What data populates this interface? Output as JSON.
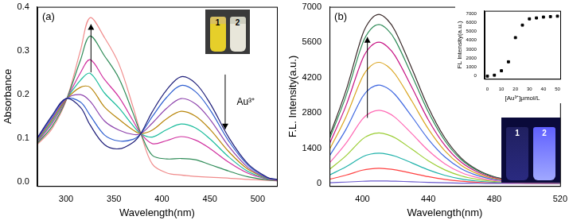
{
  "chart_data": [
    {
      "type": "line",
      "x_label": "Wavelength(nm)",
      "y_label": "Absorbance",
      "annotations": [
        "(a)",
        "Au³⁺",
        "1",
        "2"
      ],
      "grid": false,
      "xlim": [
        270,
        520
      ],
      "xticks": [
        300,
        350,
        400,
        450,
        500
      ],
      "ylim": [
        -0.01,
        0.4
      ],
      "yticks": [
        {
          "value": 0,
          "label": "0.0"
        },
        0.1,
        0.2,
        0.3,
        0.4
      ],
      "x": [
        270,
        285,
        300,
        315,
        325,
        340,
        355,
        370,
        378,
        390,
        405,
        420,
        435,
        450,
        470,
        490,
        510,
        520
      ],
      "series": [
        {
          "color": "#1f1f7a",
          "values": [
            0.1,
            0.15,
            0.19,
            0.17,
            0.13,
            0.085,
            0.075,
            0.09,
            0.11,
            0.16,
            0.21,
            0.24,
            0.225,
            0.18,
            0.1,
            0.04,
            0.01,
            0.005
          ]
        },
        {
          "color": "#2f5fd0",
          "values": [
            0.099,
            0.147,
            0.19,
            0.182,
            0.152,
            0.107,
            0.093,
            0.097,
            0.11,
            0.149,
            0.193,
            0.22,
            0.206,
            0.165,
            0.092,
            0.037,
            0.009,
            0.005
          ]
        },
        {
          "color": "#8e44ad",
          "values": [
            0.097,
            0.143,
            0.189,
            0.199,
            0.184,
            0.139,
            0.118,
            0.108,
            0.11,
            0.134,
            0.168,
            0.19,
            0.178,
            0.143,
            0.08,
            0.032,
            0.008,
            0.004
          ]
        },
        {
          "color": "#b8860b",
          "values": [
            0.095,
            0.14,
            0.188,
            0.216,
            0.216,
            0.171,
            0.143,
            0.118,
            0.11,
            0.118,
            0.144,
            0.161,
            0.15,
            0.12,
            0.068,
            0.028,
            0.008,
            0.004
          ]
        },
        {
          "color": "#1abc9c",
          "values": [
            0.093,
            0.136,
            0.188,
            0.232,
            0.248,
            0.203,
            0.169,
            0.128,
            0.11,
            0.102,
            0.119,
            0.132,
            0.123,
            0.098,
            0.056,
            0.023,
            0.007,
            0.004
          ]
        },
        {
          "color": "#d0309f",
          "values": [
            0.091,
            0.132,
            0.187,
            0.249,
            0.279,
            0.234,
            0.194,
            0.139,
            0.11,
            0.087,
            0.094,
            0.103,
            0.095,
            0.076,
            0.044,
            0.019,
            0.006,
            0.003
          ]
        },
        {
          "color": "#2e8b57",
          "values": [
            0.088,
            0.125,
            0.186,
            0.278,
            0.333,
            0.288,
            0.237,
            0.156,
            0.11,
            0.06,
            0.052,
            0.053,
            0.05,
            0.039,
            0.024,
            0.011,
            0.004,
            0.002
          ]
        },
        {
          "color": "#f08c8c",
          "values": [
            0.085,
            0.12,
            0.185,
            0.3,
            0.375,
            0.33,
            0.27,
            0.17,
            0.11,
            0.04,
            0.02,
            0.015,
            0.012,
            0.01,
            0.008,
            0.005,
            0.003,
            0.002
          ]
        }
      ]
    },
    {
      "type": "line",
      "x_label": "Wavelength(nm)",
      "y_label": "F.L. Intensity(a.u.)",
      "annotations": [
        "(b)",
        "1",
        "2"
      ],
      "grid": false,
      "xlim": [
        380,
        520
      ],
      "xticks": [
        400,
        440,
        480,
        520
      ],
      "ylim": [
        -100,
        7000
      ],
      "yticks": [
        0,
        1400,
        2800,
        4200,
        5600,
        7000
      ],
      "x": [
        380,
        390,
        400,
        405,
        410,
        415,
        420,
        430,
        440,
        450,
        460,
        470,
        480,
        490,
        500,
        510,
        520
      ],
      "series": [
        {
          "color": "#6a5acd",
          "values": [
            28,
            55,
            88,
            97,
            100,
            97,
            90,
            68,
            45,
            27,
            15,
            8,
            4,
            2,
            1,
            1,
            0
          ]
        },
        {
          "color": "#ff4040",
          "values": [
            168,
            330,
            528,
            582,
            600,
            582,
            540,
            408,
            270,
            162,
            90,
            48,
            24,
            12,
            6,
            3,
            1
          ]
        },
        {
          "color": "#20b2aa",
          "values": [
            336,
            660,
            1056,
            1164,
            1200,
            1164,
            1080,
            816,
            540,
            324,
            180,
            96,
            48,
            24,
            12,
            6,
            2
          ]
        },
        {
          "color": "#9acd32",
          "values": [
            560,
            1100,
            1760,
            1940,
            2000,
            1940,
            1800,
            1360,
            900,
            540,
            300,
            160,
            80,
            40,
            20,
            10,
            4
          ]
        },
        {
          "color": "#ff69b4",
          "values": [
            812,
            1595,
            2552,
            2813,
            2900,
            2813,
            2610,
            1972,
            1305,
            783,
            435,
            232,
            116,
            58,
            29,
            15,
            6
          ]
        },
        {
          "color": "#4169e1",
          "values": [
            1092,
            2145,
            3432,
            3783,
            3900,
            3783,
            3510,
            2652,
            1755,
            1053,
            585,
            312,
            156,
            78,
            39,
            20,
            8
          ]
        },
        {
          "color": "#daa520",
          "values": [
            1344,
            2640,
            4224,
            4656,
            4800,
            4656,
            4320,
            3264,
            2160,
            1296,
            720,
            384,
            192,
            96,
            48,
            24,
            10
          ]
        },
        {
          "color": "#c71585",
          "values": [
            1568,
            3080,
            4928,
            5432,
            5600,
            5432,
            5040,
            3808,
            2520,
            1512,
            840,
            448,
            224,
            112,
            56,
            28,
            11
          ]
        },
        {
          "color": "#2e8b57",
          "values": [
            1764,
            3465,
            5544,
            6111,
            6300,
            6111,
            5670,
            4284,
            2835,
            1701,
            945,
            504,
            252,
            126,
            63,
            32,
            13
          ]
        },
        {
          "color": "#3a2a2a",
          "values": [
            1876,
            3685,
            5896,
            6499,
            6700,
            6499,
            6030,
            4556,
            3015,
            1809,
            1005,
            536,
            268,
            134,
            67,
            34,
            13
          ]
        }
      ]
    },
    {
      "type": "scatter",
      "x_label": "[Au³⁺]μmol/L",
      "y_label": "FL Intensity(a.u.)",
      "grid": false,
      "marker": "square",
      "color": "#000000",
      "xlim": [
        -2,
        52
      ],
      "xticks": [
        0,
        10,
        20,
        30,
        40,
        50
      ],
      "ylim": [
        -300,
        7300
      ],
      "yticks": [
        0,
        1000,
        2000,
        3000,
        4000,
        5000,
        6000,
        7000
      ],
      "x": [
        0,
        5,
        10,
        15,
        20,
        25,
        30,
        35,
        40,
        45,
        50
      ],
      "values": [
        0,
        100,
        600,
        1600,
        4300,
        5700,
        6400,
        6500,
        6600,
        6650,
        6700
      ]
    }
  ]
}
